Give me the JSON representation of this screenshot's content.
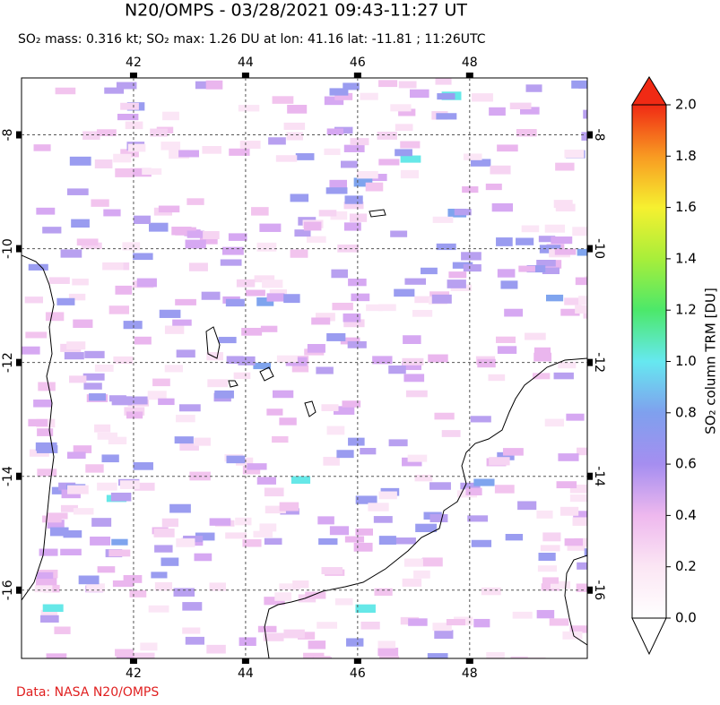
{
  "chart_data": {
    "type": "map",
    "title": "N20/OMPS - 03/28/2021 09:43-11:27 UT",
    "subtitle": "SO₂ mass: 0.316 kt; SO₂ max: 1.26 DU at lon: 41.16 lat: -11.81 ; 11:26UTC",
    "xlim": [
      40,
      50.1
    ],
    "ylim": [
      -17.2,
      -7
    ],
    "xticks": [
      42,
      44,
      46,
      48
    ],
    "yticks": [
      -8,
      -10,
      -12,
      -14,
      -16
    ],
    "colorbar": {
      "label": "SO₂ column TRM [DU]",
      "lim": [
        0,
        2
      ],
      "ticks": [
        {
          "value": 0,
          "label": "0.0"
        },
        {
          "value": 0.2,
          "label": "0.2"
        },
        {
          "value": 0.4,
          "label": "0.4"
        },
        {
          "value": 0.6,
          "label": "0.6"
        },
        {
          "value": 0.8,
          "label": "0.8"
        },
        {
          "value": 1,
          "label": "1.0"
        },
        {
          "value": 1.2,
          "label": "1.2"
        },
        {
          "value": 1.4,
          "label": "1.4"
        },
        {
          "value": 1.6,
          "label": "1.6"
        },
        {
          "value": 1.8,
          "label": "1.8"
        },
        {
          "value": 2,
          "label": "2.0"
        }
      ]
    },
    "credit": "Data: NASA N20/OMPS"
  }
}
